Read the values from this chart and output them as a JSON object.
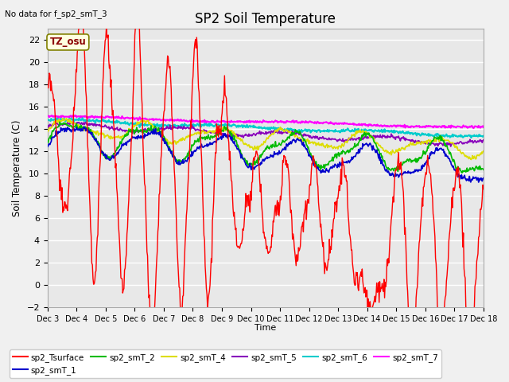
{
  "title": "SP2 Soil Temperature",
  "xlabel": "Time",
  "ylabel": "Soil Temperature (C)",
  "note": "No data for f_sp2_smT_3",
  "tz_label": "TZ_osu",
  "ylim": [
    -2,
    23
  ],
  "yticks": [
    -2,
    0,
    2,
    4,
    6,
    8,
    10,
    12,
    14,
    16,
    18,
    20,
    22
  ],
  "xtick_labels": [
    "Dec 3",
    "Dec 4",
    "Dec 5",
    "Dec 6",
    "Dec 7",
    "Dec 8",
    "Dec 9",
    "Dec 10",
    "Dec 11",
    "Dec 12",
    "Dec 13",
    "Dec 14",
    "Dec 15",
    "Dec 16",
    "Dec 17",
    "Dec 18"
  ],
  "series": {
    "sp2_Tsurface": {
      "color": "#ff0000",
      "lw": 1.0
    },
    "sp2_smT_1": {
      "color": "#0000cc",
      "lw": 1.2
    },
    "sp2_smT_2": {
      "color": "#00bb00",
      "lw": 1.2
    },
    "sp2_smT_4": {
      "color": "#dddd00",
      "lw": 1.2
    },
    "sp2_smT_5": {
      "color": "#8800bb",
      "lw": 1.2
    },
    "sp2_smT_6": {
      "color": "#00cccc",
      "lw": 1.5
    },
    "sp2_smT_7": {
      "color": "#ff00ff",
      "lw": 1.5
    }
  },
  "figsize": [
    6.4,
    4.8
  ],
  "dpi": 100
}
